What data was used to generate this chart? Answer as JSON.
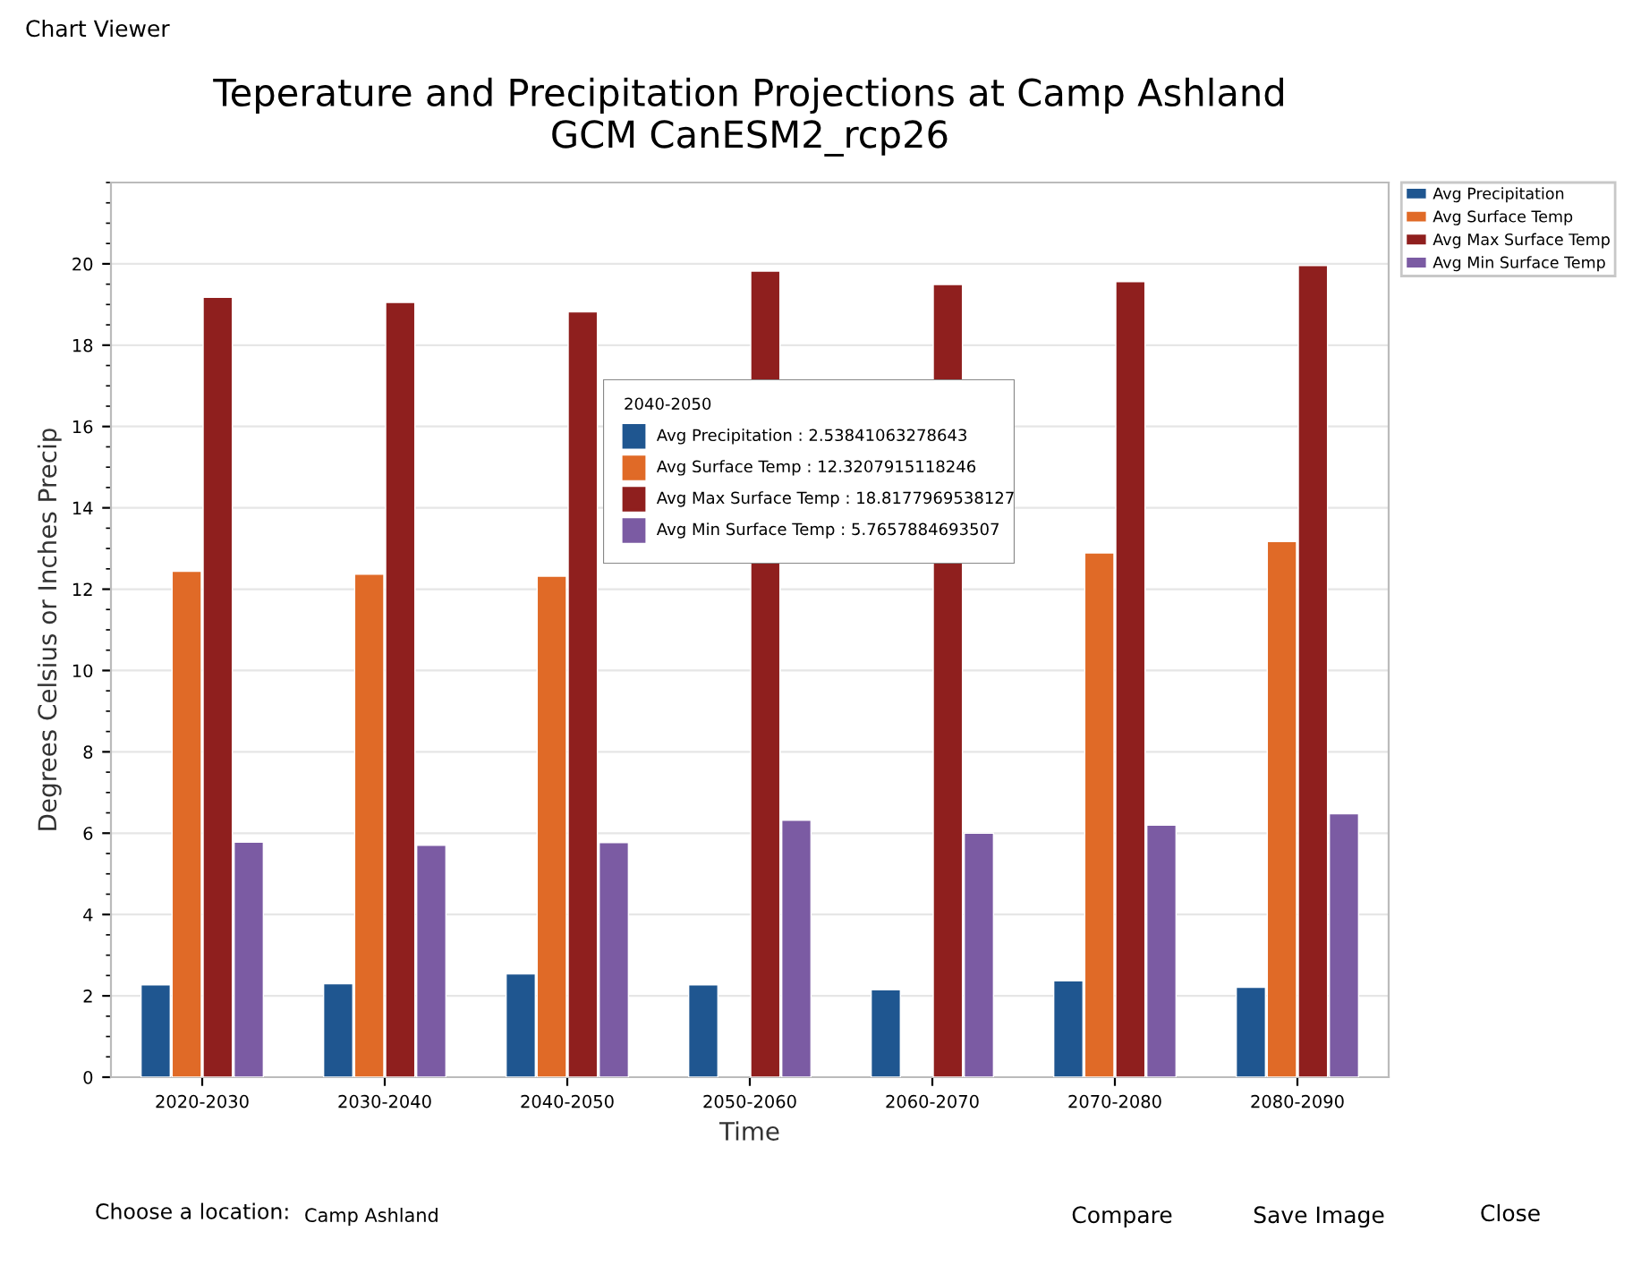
{
  "chart_data": {
    "type": "bar",
    "title": "Teperature and Precipitation Projections at Camp Ashland\nGCM CanESM2_rcp26",
    "xlabel": "Time",
    "ylabel": "Degrees Celsius or Inches Precip",
    "categories": [
      "2020-2030",
      "2030-2040",
      "2040-2050",
      "2050-2060",
      "2060-2070",
      "2070-2080",
      "2080-2090"
    ],
    "series": [
      {
        "name": "Avg Precipitation",
        "color": "#1f5690",
        "values": [
          2.27,
          2.3,
          2.54,
          2.27,
          2.15,
          2.37,
          2.21
        ]
      },
      {
        "name": "Avg Surface Temp",
        "color": "#e06a27",
        "values": [
          12.44,
          12.37,
          12.32,
          null,
          null,
          12.89,
          13.17
        ]
      },
      {
        "name": "Avg Max Surface Temp",
        "color": "#8f1f1e",
        "values": [
          19.18,
          19.05,
          18.82,
          19.82,
          19.49,
          19.56,
          19.96
        ]
      },
      {
        "name": "Avg Min Surface Temp",
        "color": "#7b5ba3",
        "values": [
          5.78,
          5.7,
          5.77,
          6.32,
          6.0,
          6.2,
          6.48
        ]
      }
    ],
    "ylim": [
      0,
      22
    ],
    "yticks": [
      0,
      2,
      4,
      6,
      8,
      10,
      12,
      14,
      16,
      18,
      20
    ],
    "grid": "y",
    "legend": "right",
    "annotations": [
      "2040-2050",
      "Avg Precipitation : 2.53841063278643",
      "Avg Surface Temp : 12.3207915118246",
      "Avg Max Surface Temp : 18.8177969538127",
      "Avg Min Surface Temp : 5.7657884693507",
      "Chart Viewer",
      "Choose a location:",
      "Camp Ashland",
      "Compare",
      "Save Image",
      "Close"
    ]
  }
}
